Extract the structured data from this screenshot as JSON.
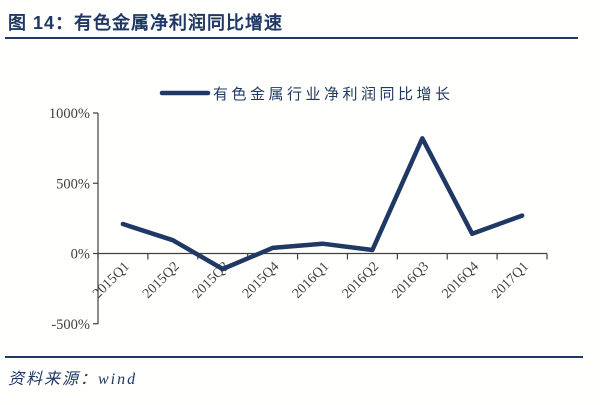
{
  "header": {
    "title": "图 14：有色金属净利润同比增速"
  },
  "source": {
    "label": "资料来源：wind"
  },
  "colors": {
    "accent_navy": "#1F3864",
    "axis": "#404040",
    "tick_label": "#404040"
  },
  "chart_data": {
    "type": "line",
    "title": "",
    "legend": "有色金属行业净利润同比增长",
    "legend_position": "top",
    "categories": [
      "2015Q1",
      "2015Q2",
      "2015Q3",
      "2015Q4",
      "2016Q1",
      "2016Q2",
      "2016Q3",
      "2016Q4",
      "2017Q1"
    ],
    "series": [
      {
        "name": "有色金属行业净利润同比增长",
        "values": [
          210,
          95,
          -110,
          40,
          70,
          25,
          820,
          140,
          270
        ]
      }
    ],
    "xlabel": "",
    "ylabel": "",
    "ylim": [
      -500,
      1000
    ],
    "ytick_values": [
      1000,
      500,
      0,
      -500
    ],
    "ytick_labels": [
      "1000%",
      "500%",
      "0%",
      "-500%"
    ],
    "grid": false,
    "unit": "percent"
  }
}
